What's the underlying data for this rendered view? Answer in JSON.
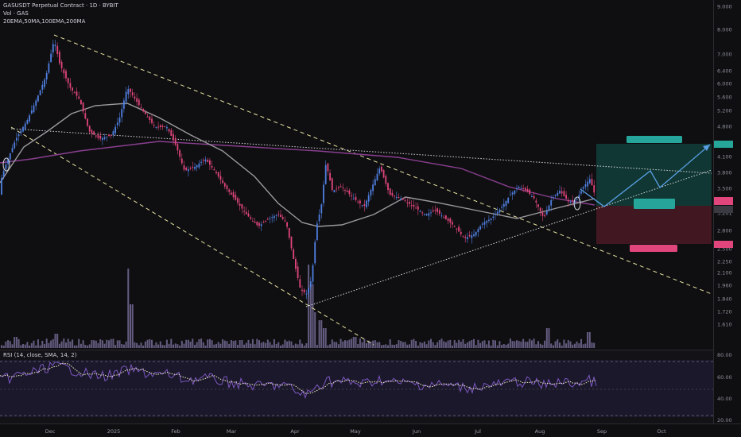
{
  "header": {
    "symbol_line": "GASUSDT Perpetual Contract · 1D · BYBIT",
    "volume_line": "Vol · GAS",
    "ma_line": "20EMA,50MA,100EMA,200MA"
  },
  "rsi_pane": {
    "label": "RSI (14, close, SMA, 14, 2)",
    "scale": [
      "80.00",
      "60.00",
      "40.00",
      "20.00"
    ]
  },
  "price_scale": {
    "labels": [
      "9.000",
      "8.000",
      "7.000",
      "6.400",
      "6.000",
      "5.600",
      "5.200",
      "4.800",
      "4.100",
      "3.800",
      "3.500",
      "3.201",
      "2.800",
      "2.500",
      "2.250",
      "2.100",
      "1.960",
      "1.840",
      "1.720",
      "1.610"
    ]
  },
  "time_axis": {
    "labels": [
      "Dec",
      "2025",
      "Feb",
      "Mar",
      "Apr",
      "May",
      "Jun",
      "Jul",
      "Aug",
      "Sep",
      "Oct"
    ]
  },
  "colors": {
    "background": "#0f0f12",
    "up_candle": "#4f7fe0",
    "down_candle": "#e0457b",
    "ma_gray": "#9a9a9e",
    "ma_purple": "#8a3f8f",
    "trendline_yellow": "#e8e3a0",
    "target_zone": "#103e39",
    "stop_zone": "#4a1a25",
    "projection_blue": "#5aa0e6",
    "price_tag_red": "#e0457b",
    "price_tag_teal": "#26a69a"
  }
}
